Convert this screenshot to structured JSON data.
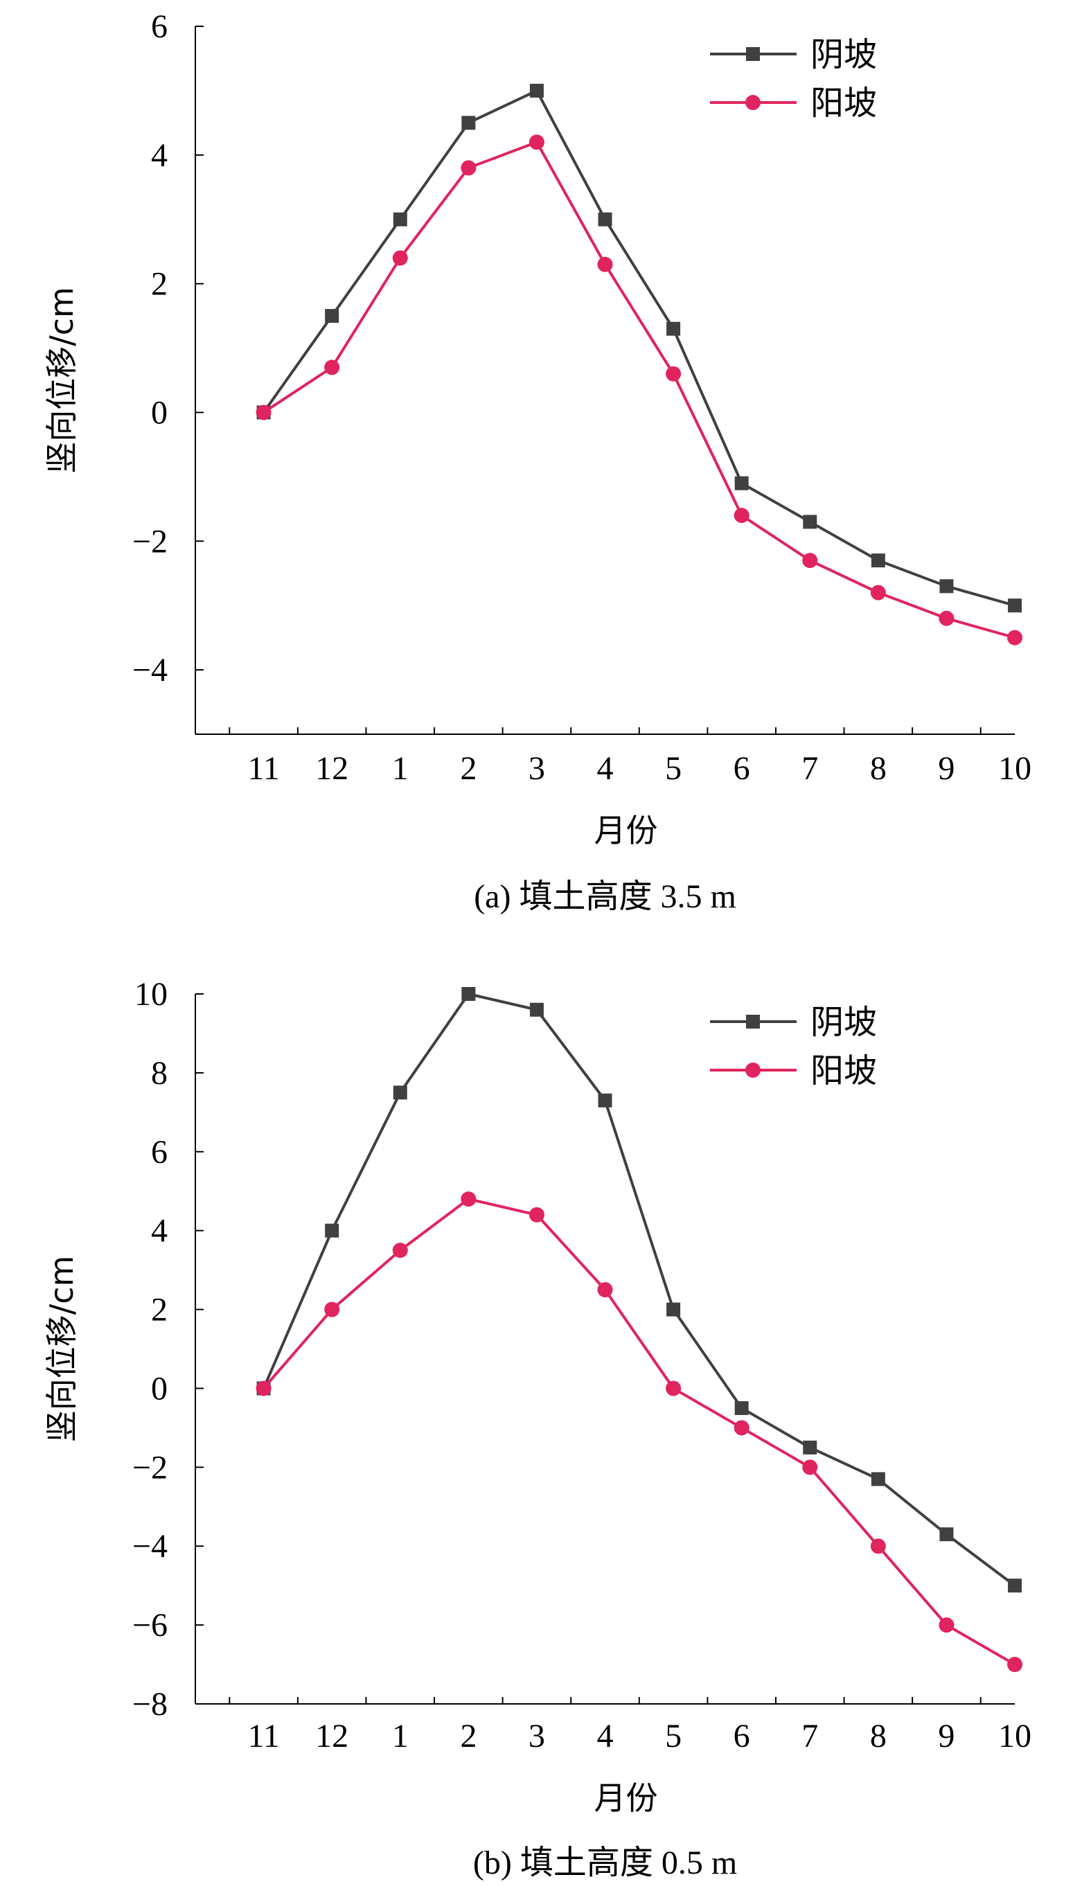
{
  "chart_data": [
    {
      "type": "line",
      "categories": [
        "11",
        "12",
        "1",
        "2",
        "3",
        "4",
        "5",
        "6",
        "7",
        "8",
        "9",
        "10"
      ],
      "xlabel": "月份",
      "ylabel": "竖向位移/cm",
      "ylim": [
        -5,
        6
      ],
      "yticks": [
        -4,
        -2,
        0,
        2,
        4,
        6
      ],
      "ytick_labels": [
        "−4",
        "−2",
        "0",
        "2",
        "4",
        "6"
      ],
      "caption": "(a) 填土高度 3.5 m",
      "legend_position": "top-right",
      "grid": false,
      "series": [
        {
          "name": "阴坡",
          "color": "#404040",
          "marker": "square",
          "values": [
            0,
            1.5,
            3.0,
            4.5,
            5.0,
            3.0,
            1.3,
            -1.1,
            -1.7,
            -2.3,
            -2.7,
            -3.0
          ]
        },
        {
          "name": "阳坡",
          "color": "#e0245e",
          "marker": "circle",
          "values": [
            0,
            0.7,
            2.4,
            3.8,
            4.2,
            2.3,
            0.6,
            -1.6,
            -2.3,
            -2.8,
            -3.2,
            -3.5
          ]
        }
      ]
    },
    {
      "type": "line",
      "categories": [
        "11",
        "12",
        "1",
        "2",
        "3",
        "4",
        "5",
        "6",
        "7",
        "8",
        "9",
        "10"
      ],
      "xlabel": "月份",
      "ylabel": "竖向位移/cm",
      "ylim": [
        -8,
        10
      ],
      "yticks": [
        -8,
        -6,
        -4,
        -2,
        0,
        2,
        4,
        6,
        8,
        10
      ],
      "ytick_labels": [
        "−8",
        "−6",
        "−4",
        "−2",
        "0",
        "2",
        "4",
        "6",
        "8",
        "10"
      ],
      "caption": "(b) 填土高度 0.5 m",
      "legend_position": "top-right",
      "grid": false,
      "series": [
        {
          "name": "阴坡",
          "color": "#404040",
          "marker": "square",
          "values": [
            0,
            4.0,
            7.5,
            10.0,
            9.6,
            7.3,
            2.0,
            -0.5,
            -1.5,
            -2.3,
            -3.7,
            -5.0
          ]
        },
        {
          "name": "阳坡",
          "color": "#e0245e",
          "marker": "circle",
          "values": [
            0,
            2.0,
            3.5,
            4.8,
            4.4,
            2.5,
            0,
            -1.0,
            -2.0,
            -4.0,
            -6.0,
            -7.0
          ]
        }
      ]
    }
  ]
}
